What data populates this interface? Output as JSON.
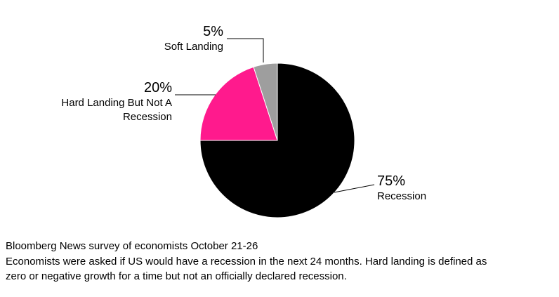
{
  "chart_data": {
    "type": "pie",
    "slices": [
      {
        "label": "Recession",
        "value": 75,
        "pct": "75%",
        "color": "#000000"
      },
      {
        "label": "Hard Landing But Not A Recession",
        "value": 20,
        "pct": "20%",
        "color": "#ff1a8d"
      },
      {
        "label": "Soft Landing",
        "value": 5,
        "pct": "5%",
        "color": "#9e9e9e"
      }
    ],
    "start_angle_deg": -90,
    "direction": "clockwise",
    "legend_position": "callout-labels",
    "title": "",
    "source_note": "Bloomberg News survey of economists October 21-26",
    "description": "Economists were asked if US would have a recession in the next 24 months. Hard landing is defined as zero or negative growth for a time but not an officially declared recession."
  }
}
